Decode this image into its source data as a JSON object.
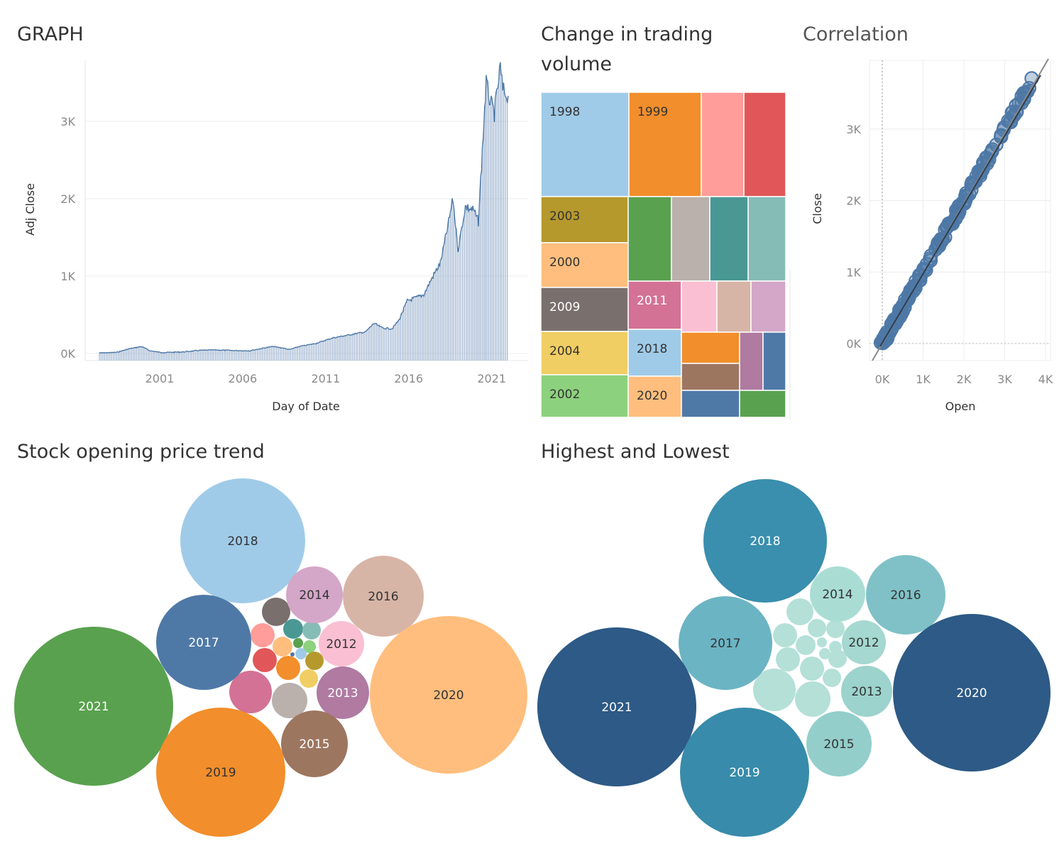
{
  "titles": {
    "graph": "GRAPH",
    "treemap_line1": "Change in trading",
    "treemap_line2": "volume",
    "correlation": "Correlation",
    "bubbles_open": "Stock opening price trend",
    "bubbles_highlow": "Highest and Lowest"
  },
  "chart_data": [
    {
      "type": "area",
      "name_key": "graph",
      "xlabel": "Day of Date",
      "ylabel": "Adj Close",
      "x_ticks": [
        "2001",
        "2006",
        "2011",
        "2016",
        "2021"
      ],
      "y_ticks": [
        "0K",
        "1K",
        "2K",
        "3K"
      ],
      "ylim": [
        0,
        3800
      ],
      "xlim": [
        "1997-05-15",
        "2021-12-31"
      ],
      "grid": true,
      "series": [
        {
          "x": [
            "1997-05-15",
            "1998-06-01",
            "1999-03-01",
            "1999-12-01",
            "2000-06-01",
            "2001-03-01",
            "2001-09-01",
            "2002-06-01",
            "2003-06-01",
            "2004-06-01",
            "2005-06-01",
            "2006-06-01",
            "2007-06-01",
            "2007-11-01",
            "2008-06-01",
            "2008-11-01",
            "2009-06-01",
            "2010-06-01",
            "2011-06-01",
            "2012-06-01",
            "2013-06-01",
            "2013-12-01",
            "2014-06-01",
            "2015-01-01",
            "2015-06-01",
            "2015-12-01",
            "2016-06-01",
            "2016-12-01",
            "2017-06-01",
            "2017-12-01",
            "2018-06-01",
            "2018-09-01",
            "2018-12-24",
            "2019-06-01",
            "2019-12-01",
            "2020-03-15",
            "2020-07-15",
            "2020-09-01",
            "2020-12-01",
            "2021-03-01",
            "2021-07-10",
            "2021-09-01",
            "2021-12-31"
          ],
          "values": [
            2,
            15,
            60,
            90,
            35,
            10,
            15,
            20,
            40,
            45,
            38,
            35,
            75,
            90,
            70,
            50,
            90,
            130,
            200,
            240,
            280,
            390,
            330,
            320,
            430,
            680,
            720,
            760,
            980,
            1170,
            1700,
            2000,
            1340,
            1900,
            1850,
            1700,
            3000,
            3500,
            3250,
            3100,
            3700,
            3400,
            3330
          ]
        }
      ]
    },
    {
      "type": "treemap",
      "name_key": "treemap",
      "labels": [
        "1998",
        "1999",
        "2003",
        "2000",
        "2009",
        "2004",
        "2002",
        "2011",
        "2018",
        "2020"
      ],
      "colors": {
        "1998": "#A0CBE8",
        "1999": "#F28E2B",
        "2003": "#B6992D",
        "2000": "#FFBE7D",
        "2009": "#79706E",
        "2004": "#F1CE63",
        "2002": "#8CD17D",
        "2011": "#D37295",
        "2018": "#A0CBE8",
        "2020": "#FFBE7D"
      }
    },
    {
      "type": "scatter",
      "name_key": "correlation",
      "xlabel": "Open",
      "ylabel": "Close",
      "x_ticks": [
        "0K",
        "1K",
        "2K",
        "3K",
        "4K"
      ],
      "y_ticks": [
        "0K",
        "1K",
        "2K",
        "3K"
      ],
      "xlim": [
        0,
        4000
      ],
      "ylim": [
        0,
        3800
      ],
      "trend_line": true,
      "point_color": "#4E79A7"
    },
    {
      "type": "bubble",
      "name_key": "bubbles_open",
      "labels": [
        "2018",
        "2014",
        "2016",
        "2017",
        "2012",
        "2021",
        "2020",
        "2013",
        "2015",
        "2019"
      ],
      "colors": {
        "2018": "#A0CBE8",
        "2014": "#D4A6C8",
        "2016": "#D7B5A6",
        "2017": "#4E79A7",
        "2012": "#FABFD2",
        "2021": "#59A14F",
        "2020": "#FFBE7D",
        "2013": "#B07AA1",
        "2015": "#9D7660",
        "2019": "#F28E2B"
      }
    },
    {
      "type": "bubble",
      "name_key": "bubbles_highlow",
      "labels": [
        "2018",
        "2014",
        "2016",
        "2017",
        "2012",
        "2013",
        "2021",
        "2020",
        "2015",
        "2019"
      ],
      "colors": {
        "2018": "#3A8EAE",
        "2014": "#A9DDD4",
        "2016": "#7FC1C7",
        "2017": "#6BB4C4",
        "2012": "#A4D8D0",
        "2013": "#9CD3CD",
        "2021": "#2D5A86",
        "2020": "#2D5A86",
        "2015": "#93CECA",
        "2019": "#388BAA"
      }
    }
  ]
}
